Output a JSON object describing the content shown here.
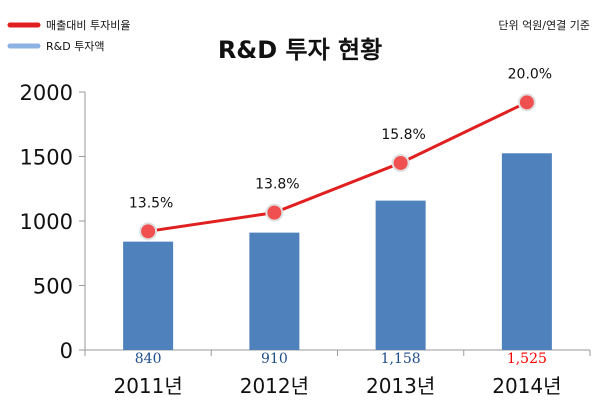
{
  "chart_data": {
    "type": "bar",
    "title": "R&D 투자 현황",
    "unit_note": "단위 억원/연결 기준",
    "categories": [
      "2011년",
      "2012년",
      "2013년",
      "2014년"
    ],
    "ylim": [
      0,
      2000
    ],
    "yticks": [
      0,
      500,
      1000,
      1500,
      2000
    ],
    "grid": false,
    "legend_position": "top-left",
    "series": [
      {
        "name": "R&D 투자액",
        "type": "bar",
        "color": "#4f81bd",
        "values": [
          840,
          910,
          1158,
          1525
        ],
        "value_labels": [
          "840",
          "910",
          "1,158",
          "1,525"
        ],
        "value_label_colors": [
          "#1f4e8c",
          "#1f4e8c",
          "#1f4e8c",
          "#ff0000"
        ]
      },
      {
        "name": "매출대비 투자비율",
        "type": "line",
        "color": "#e02020",
        "percent_values": [
          13.5,
          13.8,
          15.8,
          20.0
        ],
        "labels": [
          "13.5%",
          "13.8%",
          "15.8%",
          "20.0%"
        ],
        "plotted_values": [
          920,
          1065,
          1450,
          1920
        ]
      }
    ]
  }
}
